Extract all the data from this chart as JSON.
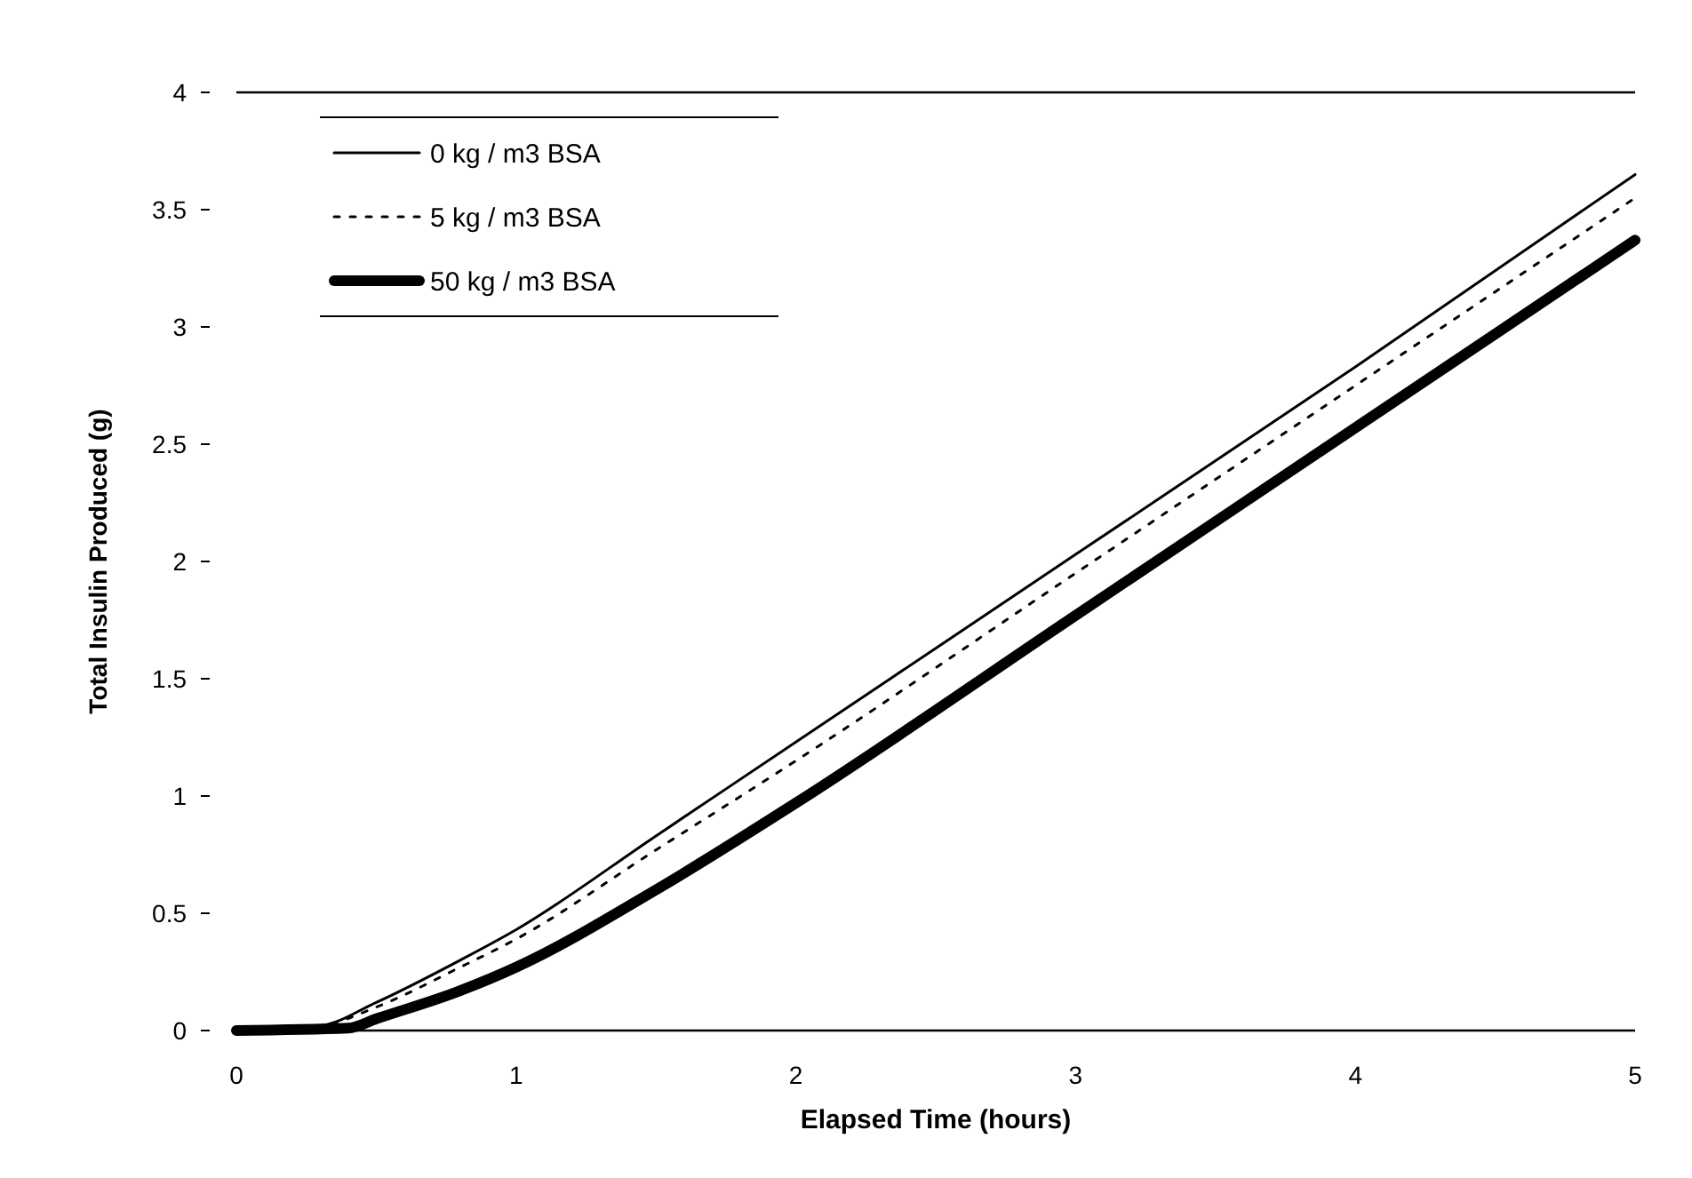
{
  "chart_data": {
    "type": "line",
    "xlabel": "Elapsed Time (hours)",
    "ylabel": "Total Insulin Produced (g)",
    "xlim": [
      0,
      5
    ],
    "xticks": [
      0,
      1,
      2,
      3,
      4,
      5
    ],
    "ylim": [
      0,
      4
    ],
    "yticks": [
      0,
      0.5,
      1,
      1.5,
      2,
      2.5,
      3,
      3.5,
      4
    ],
    "legend": "top left",
    "grid": false,
    "marker": "none",
    "series": [
      {
        "name": "0 kg / m3 BSA",
        "color": "#000000",
        "line_style": "solid",
        "x": [
          0,
          0.3,
          0.5,
          0.8,
          1,
          1.5,
          2,
          3,
          4,
          5
        ],
        "values": [
          0,
          0.02,
          0.12,
          0.3,
          0.43,
          0.83,
          1.23,
          2.03,
          2.83,
          3.65
        ]
      },
      {
        "name": "5 kg / m3 BSA",
        "color": "#000000",
        "line_style": "dotted",
        "x": [
          0,
          0.3,
          0.5,
          0.8,
          1,
          1.5,
          2,
          3,
          4,
          5
        ],
        "values": [
          0,
          0.02,
          0.1,
          0.27,
          0.39,
          0.77,
          1.15,
          1.95,
          2.75,
          3.55
        ]
      },
      {
        "name": "50 kg / m3 BSA",
        "color": "#000000",
        "line_style": "solid",
        "x": [
          0,
          0.4,
          0.5,
          0.8,
          1,
          1.5,
          2,
          3,
          4,
          5
        ],
        "values": [
          0,
          0.01,
          0.05,
          0.17,
          0.27,
          0.6,
          0.97,
          1.77,
          2.57,
          3.37
        ]
      }
    ]
  }
}
